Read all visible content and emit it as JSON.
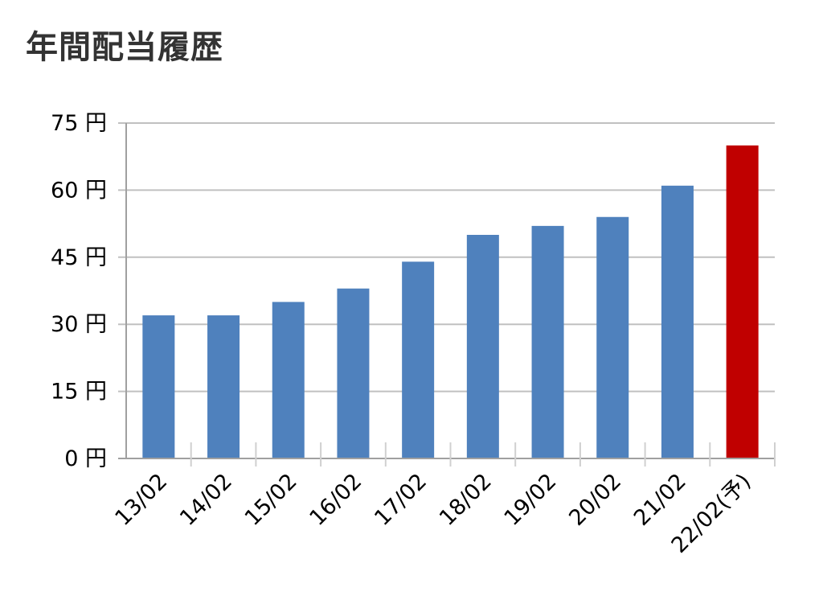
{
  "chart_data": {
    "type": "bar",
    "title": "年間配当履歴",
    "xlabel": "",
    "ylabel": "",
    "categories": [
      "13/02",
      "14/02",
      "15/02",
      "16/02",
      "17/02",
      "18/02",
      "19/02",
      "20/02",
      "21/02",
      "22/02(予)"
    ],
    "values": [
      32,
      32,
      35,
      38,
      44,
      50,
      52,
      54,
      61,
      70
    ],
    "colors": [
      "#4f81bd",
      "#4f81bd",
      "#4f81bd",
      "#4f81bd",
      "#4f81bd",
      "#4f81bd",
      "#4f81bd",
      "#4f81bd",
      "#4f81bd",
      "#c00000"
    ],
    "ylim": [
      0,
      75
    ],
    "yticks": [
      0,
      15,
      30,
      45,
      60,
      75
    ],
    "ytick_labels": [
      "0 円",
      "15 円",
      "30 円",
      "45 円",
      "60 円",
      "75 円"
    ],
    "grid": true,
    "legend": "none"
  }
}
